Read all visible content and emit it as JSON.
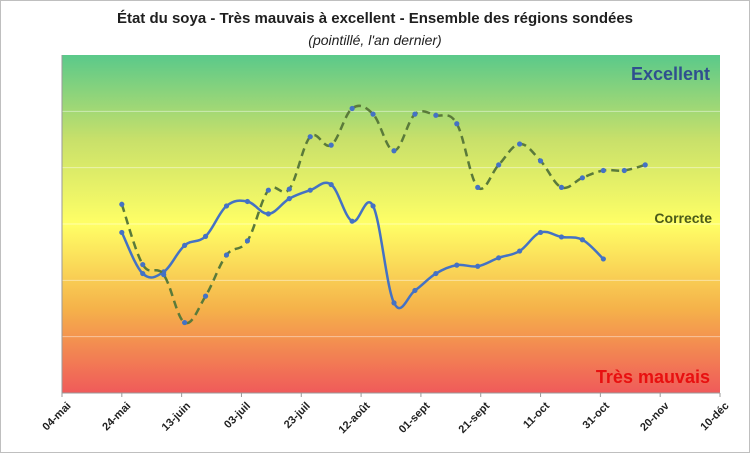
{
  "chart_data": {
    "type": "line",
    "title": "État du soya - Très mauvais à excellent - Ensemble des régions sondées",
    "subtitle": "(pointillé, l'an dernier)",
    "x_tick_labels": [
      "04-mai",
      "24-mai",
      "13-juin",
      "03-juil",
      "23-juil",
      "12-août",
      "01-sept",
      "21-sept",
      "11-oct",
      "31-oct",
      "20-nov",
      "10-déc"
    ],
    "xlim": [
      "2024-05-04",
      "2024-12-10"
    ],
    "ylim": [
      0,
      6
    ],
    "y_ticks_visible": false,
    "annotations": {
      "top": "Excellent",
      "middle": "Correcte",
      "bottom": "Très mauvais"
    },
    "background_gradient": [
      "#5ac98a",
      "#c8e06a",
      "#ffff66",
      "#f5b24a",
      "#f05a5a"
    ],
    "series": [
      {
        "style": "solid",
        "color": "#4472c4",
        "points": [
          [
            "2024-05-24",
            2.85
          ],
          [
            "2024-05-31",
            2.12
          ],
          [
            "2024-06-07",
            2.15
          ],
          [
            "2024-06-14",
            2.62
          ],
          [
            "2024-06-21",
            2.78
          ],
          [
            "2024-06-28",
            3.32
          ],
          [
            "2024-07-05",
            3.4
          ],
          [
            "2024-07-12",
            3.18
          ],
          [
            "2024-07-19",
            3.45
          ],
          [
            "2024-07-26",
            3.6
          ],
          [
            "2024-08-02",
            3.7
          ],
          [
            "2024-08-09",
            3.05
          ],
          [
            "2024-08-16",
            3.32
          ],
          [
            "2024-08-23",
            1.6
          ],
          [
            "2024-08-30",
            1.82
          ],
          [
            "2024-09-06",
            2.12
          ],
          [
            "2024-09-13",
            2.27
          ],
          [
            "2024-09-20",
            2.25
          ],
          [
            "2024-09-27",
            2.4
          ],
          [
            "2024-10-04",
            2.52
          ],
          [
            "2024-10-11",
            2.85
          ],
          [
            "2024-10-18",
            2.77
          ],
          [
            "2024-10-25",
            2.72
          ],
          [
            "2024-11-01",
            2.38
          ]
        ]
      },
      {
        "style": "dashed",
        "color": "#5a7a3a",
        "points": [
          [
            "2024-05-24",
            3.35
          ],
          [
            "2024-05-31",
            2.28
          ],
          [
            "2024-06-07",
            2.1
          ],
          [
            "2024-06-14",
            1.25
          ],
          [
            "2024-06-21",
            1.72
          ],
          [
            "2024-06-28",
            2.45
          ],
          [
            "2024-07-05",
            2.7
          ],
          [
            "2024-07-12",
            3.6
          ],
          [
            "2024-07-19",
            3.62
          ],
          [
            "2024-07-26",
            4.55
          ],
          [
            "2024-08-02",
            4.4
          ],
          [
            "2024-08-09",
            5.05
          ],
          [
            "2024-08-16",
            4.95
          ],
          [
            "2024-08-23",
            4.3
          ],
          [
            "2024-08-30",
            4.95
          ],
          [
            "2024-09-06",
            4.93
          ],
          [
            "2024-09-13",
            4.78
          ],
          [
            "2024-09-20",
            3.65
          ],
          [
            "2024-09-27",
            4.05
          ],
          [
            "2024-10-04",
            4.42
          ],
          [
            "2024-10-11",
            4.12
          ],
          [
            "2024-10-18",
            3.65
          ],
          [
            "2024-10-25",
            3.82
          ],
          [
            "2024-11-01",
            3.95
          ],
          [
            "2024-11-08",
            3.95
          ],
          [
            "2024-11-15",
            4.05
          ]
        ]
      }
    ]
  }
}
